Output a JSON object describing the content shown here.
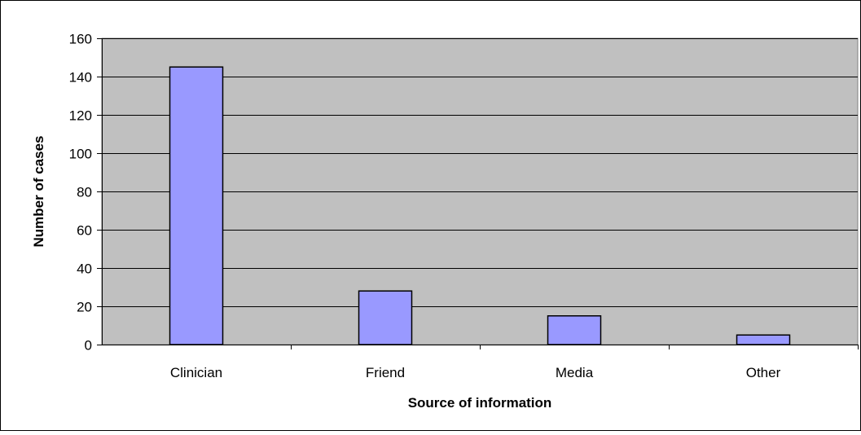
{
  "chart_data": {
    "type": "bar",
    "title": "",
    "xlabel": "Source of information",
    "ylabel": "Number of cases",
    "categories": [
      "Clinician",
      "Friend",
      "Media",
      "Other"
    ],
    "values": [
      145,
      28,
      15,
      5
    ],
    "ylim": [
      0,
      160
    ],
    "yticks": [
      "0",
      "20",
      "40",
      "60",
      "80",
      "100",
      "120",
      "140",
      "160"
    ],
    "grid": true,
    "legend": "none"
  },
  "colors": {
    "plot_background": "#c0c0c0",
    "bar_fill": "#9999ff",
    "bar_stroke": "#000000",
    "gridline": "#000000"
  }
}
